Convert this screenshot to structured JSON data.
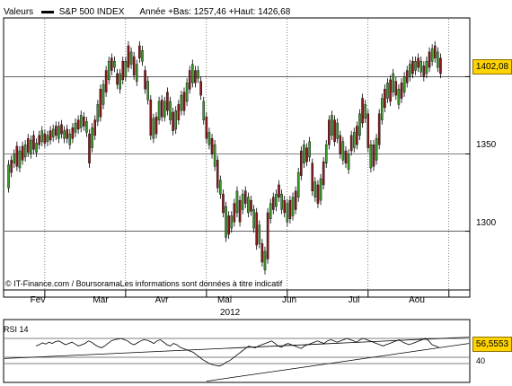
{
  "header": {
    "values_label": "Valeurs",
    "index_name": "S&P 500 INDEX",
    "range_text": "Année +Bas: 1257,46 +Haut: 1426,68"
  },
  "credit": "© IT-Finance.com / BoursoramaLes informations sont données à titre indicatif",
  "rsi": {
    "label": "RSI 14",
    "last_value": "56,5553",
    "level_label": "40"
  },
  "chart_data": {
    "type": "candlestick",
    "year": "2012",
    "last_price": "1402,08",
    "ylim": [
      1262,
      1438
    ],
    "yticks": [
      1300,
      1350,
      1400
    ],
    "ytick_labels": [
      "1300",
      "1350",
      "1400"
    ],
    "xtick_labels": [
      "Fev",
      "Mar",
      "Avr",
      "Mai",
      "Jun",
      "Jul",
      "Aou"
    ],
    "xtick_index": [
      13,
      42,
      71,
      100,
      129,
      158,
      186
    ],
    "candles": [
      [
        1328,
        1343
      ],
      [
        1338,
        1346
      ],
      [
        1344,
        1350
      ],
      [
        1342,
        1355
      ],
      [
        1341,
        1352
      ],
      [
        1346,
        1355
      ],
      [
        1348,
        1356
      ],
      [
        1351,
        1360
      ],
      [
        1350,
        1359
      ],
      [
        1353,
        1362
      ],
      [
        1351,
        1357
      ],
      [
        1356,
        1362
      ],
      [
        1358,
        1365
      ],
      [
        1357,
        1363
      ],
      [
        1358,
        1362
      ],
      [
        1359,
        1365
      ],
      [
        1361,
        1366
      ],
      [
        1362,
        1368
      ],
      [
        1360,
        1368
      ],
      [
        1363,
        1369
      ],
      [
        1360,
        1365
      ],
      [
        1360,
        1366
      ],
      [
        1356,
        1363
      ],
      [
        1360,
        1367
      ],
      [
        1364,
        1370
      ],
      [
        1366,
        1372
      ],
      [
        1367,
        1375
      ],
      [
        1368,
        1374
      ],
      [
        1364,
        1371
      ],
      [
        1344,
        1363
      ],
      [
        1354,
        1367
      ],
      [
        1362,
        1372
      ],
      [
        1371,
        1382
      ],
      [
        1374,
        1392
      ],
      [
        1382,
        1395
      ],
      [
        1390,
        1404
      ],
      [
        1398,
        1410
      ],
      [
        1404,
        1412
      ],
      [
        1406,
        1410
      ],
      [
        1395,
        1402
      ],
      [
        1392,
        1402
      ],
      [
        1398,
        1410
      ],
      [
        1400,
        1410
      ],
      [
        1406,
        1420
      ],
      [
        1408,
        1416
      ],
      [
        1401,
        1413
      ],
      [
        1397,
        1408
      ],
      [
        1412,
        1420
      ],
      [
        1410,
        1417
      ],
      [
        1392,
        1404
      ],
      [
        1385,
        1397
      ],
      [
        1362,
        1385
      ],
      [
        1360,
        1373
      ],
      [
        1363,
        1374
      ],
      [
        1372,
        1384
      ],
      [
        1374,
        1385
      ],
      [
        1374,
        1384
      ],
      [
        1378,
        1390
      ],
      [
        1372,
        1384
      ],
      [
        1365,
        1377
      ],
      [
        1366,
        1378
      ],
      [
        1372,
        1382
      ],
      [
        1378,
        1388
      ],
      [
        1378,
        1390
      ],
      [
        1384,
        1396
      ],
      [
        1392,
        1404
      ],
      [
        1396,
        1408
      ],
      [
        1396,
        1404
      ],
      [
        1399,
        1404
      ],
      [
        1388,
        1397
      ],
      [
        1372,
        1384
      ],
      [
        1360,
        1374
      ],
      [
        1356,
        1364
      ],
      [
        1350,
        1360
      ],
      [
        1342,
        1356
      ],
      [
        1328,
        1346
      ],
      [
        1324,
        1333
      ],
      [
        1312,
        1324
      ],
      [
        1296,
        1316
      ],
      [
        1298,
        1310
      ],
      [
        1302,
        1310
      ],
      [
        1306,
        1318
      ],
      [
        1312,
        1326
      ],
      [
        1306,
        1320
      ],
      [
        1314,
        1324
      ],
      [
        1318,
        1326
      ],
      [
        1312,
        1322
      ],
      [
        1313,
        1320
      ],
      [
        1302,
        1314
      ],
      [
        1291,
        1312
      ],
      [
        1292,
        1304
      ],
      [
        1280,
        1292
      ],
      [
        1275,
        1287
      ],
      [
        1282,
        1312
      ],
      [
        1308,
        1318
      ],
      [
        1314,
        1322
      ],
      [
        1316,
        1324
      ],
      [
        1322,
        1330
      ],
      [
        1314,
        1324
      ],
      [
        1312,
        1320
      ],
      [
        1306,
        1318
      ],
      [
        1308,
        1320
      ],
      [
        1310,
        1322
      ],
      [
        1314,
        1326
      ],
      [
        1322,
        1338
      ],
      [
        1336,
        1352
      ],
      [
        1344,
        1356
      ],
      [
        1345,
        1354
      ],
      [
        1348,
        1358
      ],
      [
        1326,
        1344
      ],
      [
        1322,
        1332
      ],
      [
        1318,
        1330
      ],
      [
        1320,
        1334
      ],
      [
        1330,
        1345
      ],
      [
        1344,
        1356
      ],
      [
        1356,
        1372
      ],
      [
        1362,
        1375
      ],
      [
        1358,
        1372
      ],
      [
        1360,
        1370
      ],
      [
        1350,
        1362
      ],
      [
        1346,
        1358
      ],
      [
        1344,
        1352
      ],
      [
        1340,
        1350
      ],
      [
        1352,
        1362
      ],
      [
        1354,
        1364
      ],
      [
        1356,
        1368
      ],
      [
        1362,
        1376
      ],
      [
        1370,
        1386
      ],
      [
        1373,
        1382
      ],
      [
        1354,
        1376
      ],
      [
        1341,
        1356
      ],
      [
        1342,
        1356
      ],
      [
        1346,
        1360
      ],
      [
        1356,
        1376
      ],
      [
        1372,
        1386
      ],
      [
        1380,
        1392
      ],
      [
        1386,
        1396
      ],
      [
        1384,
        1398
      ],
      [
        1390,
        1402
      ],
      [
        1388,
        1397
      ],
      [
        1382,
        1392
      ],
      [
        1386,
        1396
      ],
      [
        1390,
        1400
      ],
      [
        1396,
        1404
      ],
      [
        1400,
        1408
      ],
      [
        1402,
        1410
      ],
      [
        1404,
        1410
      ],
      [
        1406,
        1412
      ],
      [
        1403,
        1410
      ],
      [
        1400,
        1407
      ],
      [
        1402,
        1410
      ],
      [
        1406,
        1416
      ],
      [
        1410,
        1418
      ],
      [
        1412,
        1420
      ],
      [
        1406,
        1416
      ],
      [
        1402,
        1412
      ]
    ],
    "rsi_values": [
      58,
      60,
      63,
      61,
      64,
      62,
      65,
      66,
      63,
      60,
      62,
      64,
      61,
      58,
      60,
      62,
      66,
      64,
      60,
      57,
      55,
      58,
      62,
      66,
      68,
      69,
      70,
      68,
      66,
      62,
      60,
      63,
      66,
      68,
      67,
      65,
      62,
      66,
      68,
      64,
      60,
      58,
      62,
      60,
      56,
      54,
      52,
      50,
      48,
      44,
      40,
      36,
      33,
      30,
      28,
      27,
      26,
      28,
      32,
      34,
      38,
      42,
      46,
      50,
      54,
      58,
      56,
      55,
      58,
      60,
      62,
      64,
      66,
      62,
      58,
      56,
      60,
      62,
      60,
      58,
      56,
      54,
      58,
      60,
      62,
      64,
      66,
      64,
      62,
      66,
      68,
      66,
      64,
      66,
      68,
      70,
      68,
      66,
      64,
      68,
      70,
      68,
      66,
      64,
      62,
      60,
      58,
      60,
      62,
      64,
      66,
      68,
      64,
      62,
      60,
      62,
      64,
      66,
      68,
      70,
      66,
      60,
      58,
      56
    ]
  }
}
